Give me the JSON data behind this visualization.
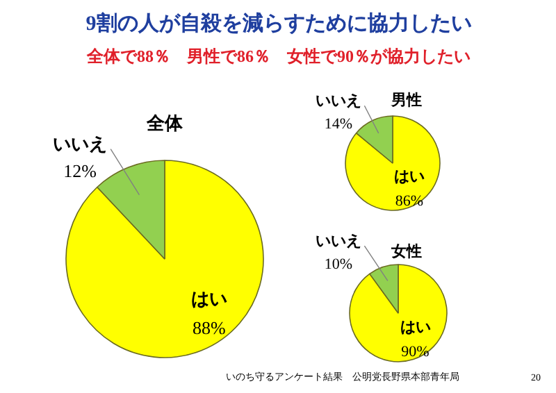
{
  "chart_data": [
    {
      "type": "pie",
      "title": "全体",
      "categories": [
        "はい",
        "いいえ"
      ],
      "values": [
        88,
        12
      ],
      "value_labels": [
        "88%",
        "12%"
      ],
      "colors": [
        "#ffff00",
        "#92d050"
      ],
      "annotations": [
        "9割の人が自殺を減らすために協力したい",
        "全体で88％　男性で86％　女性で90％が協力したい",
        "いのち守るアンケート結果　公明党長野県本部青年局",
        "20"
      ]
    },
    {
      "type": "pie",
      "title": "男性",
      "categories": [
        "はい",
        "いいえ"
      ],
      "values": [
        86,
        14
      ],
      "value_labels": [
        "86%",
        "14%"
      ],
      "colors": [
        "#ffff00",
        "#92d050"
      ]
    },
    {
      "type": "pie",
      "title": "女性",
      "categories": [
        "はい",
        "いいえ"
      ],
      "values": [
        90,
        10
      ],
      "value_labels": [
        "90%",
        "10%"
      ],
      "colors": [
        "#ffff00",
        "#92d050"
      ]
    }
  ]
}
